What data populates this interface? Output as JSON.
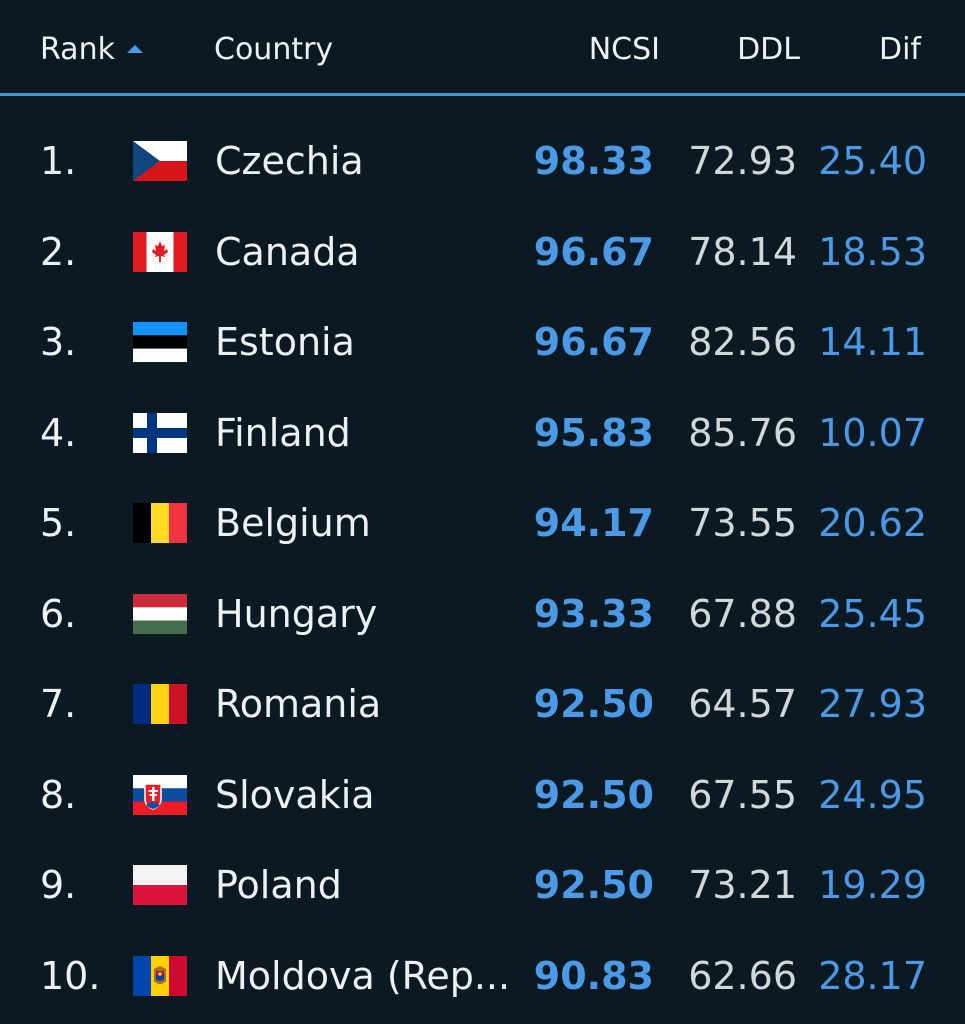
{
  "header": {
    "rank": "Rank",
    "country": "Country",
    "ncsi": "NCSI",
    "ddl": "DDL",
    "dif": "Dif"
  },
  "colors": {
    "background": "#0b1a22",
    "accent": "#4a9ae8",
    "header_rule": "#4a90d9",
    "text": "#eef1f3"
  },
  "rows": [
    {
      "rank": "1.",
      "flag": "czechia-flag-icon",
      "country": "Czechia",
      "ncsi": "98.33",
      "ddl": "72.93",
      "dif": "25.40"
    },
    {
      "rank": "2.",
      "flag": "canada-flag-icon",
      "country": "Canada",
      "ncsi": "96.67",
      "ddl": "78.14",
      "dif": "18.53"
    },
    {
      "rank": "3.",
      "flag": "estonia-flag-icon",
      "country": "Estonia",
      "ncsi": "96.67",
      "ddl": "82.56",
      "dif": "14.11"
    },
    {
      "rank": "4.",
      "flag": "finland-flag-icon",
      "country": "Finland",
      "ncsi": "95.83",
      "ddl": "85.76",
      "dif": "10.07"
    },
    {
      "rank": "5.",
      "flag": "belgium-flag-icon",
      "country": "Belgium",
      "ncsi": "94.17",
      "ddl": "73.55",
      "dif": "20.62"
    },
    {
      "rank": "6.",
      "flag": "hungary-flag-icon",
      "country": "Hungary",
      "ncsi": "93.33",
      "ddl": "67.88",
      "dif": "25.45"
    },
    {
      "rank": "7.",
      "flag": "romania-flag-icon",
      "country": "Romania",
      "ncsi": "92.50",
      "ddl": "64.57",
      "dif": "27.93"
    },
    {
      "rank": "8.",
      "flag": "slovakia-flag-icon",
      "country": "Slovakia",
      "ncsi": "92.50",
      "ddl": "67.55",
      "dif": "24.95"
    },
    {
      "rank": "9.",
      "flag": "poland-flag-icon",
      "country": "Poland",
      "ncsi": "92.50",
      "ddl": "73.21",
      "dif": "19.29"
    },
    {
      "rank": "10.",
      "flag": "moldova-flag-icon",
      "country": "Moldova (Rep...",
      "ncsi": "90.83",
      "ddl": "62.66",
      "dif": "28.17"
    }
  ]
}
